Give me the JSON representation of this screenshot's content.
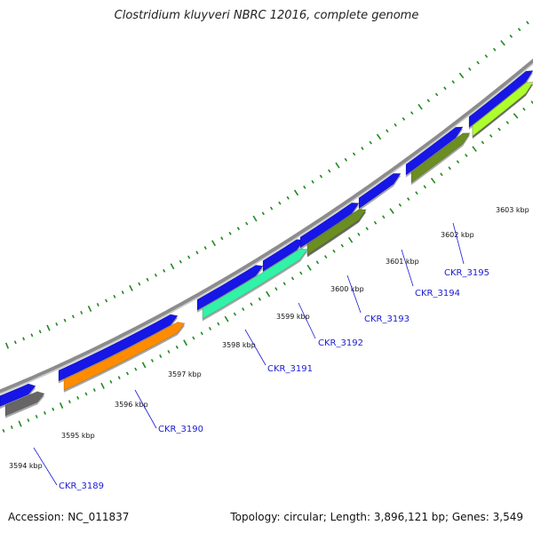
{
  "title": "Clostridium kluyveri NBRC 12016, complete genome",
  "footer": {
    "accession": "Accession: NC_011837",
    "summary": "Topology: circular; Length: 3,896,121 bp; Genes: 3,549"
  },
  "colors": {
    "backbone": "#8c8c8c",
    "forward_strand": "#1515e6",
    "tick": "#1f8a1f",
    "label": "#1a1ad6"
  },
  "kbp_labels": [
    "3594 kbp",
    "3595 kbp",
    "3596 kbp",
    "3597 kbp",
    "3598 kbp",
    "3599 kbp",
    "3600 kbp",
    "3601 kbp",
    "3602 kbp",
    "3603 kbp"
  ],
  "genes": [
    {
      "label": "CKR_3189",
      "color": "#666666"
    },
    {
      "label": "CKR_3190",
      "color": "#ff8c00"
    },
    {
      "label": "CKR_3191",
      "color": "#33f2a8"
    },
    {
      "label": "CKR_3192",
      "color": "#33f2a8"
    },
    {
      "label": "CKR_3193",
      "color": "#6b8e23"
    },
    {
      "label": "CKR_3194",
      "color": "#1515e6"
    },
    {
      "label": "CKR_3195",
      "color": "#f08080"
    },
    {
      "label": "",
      "color": "#adff2f"
    }
  ]
}
